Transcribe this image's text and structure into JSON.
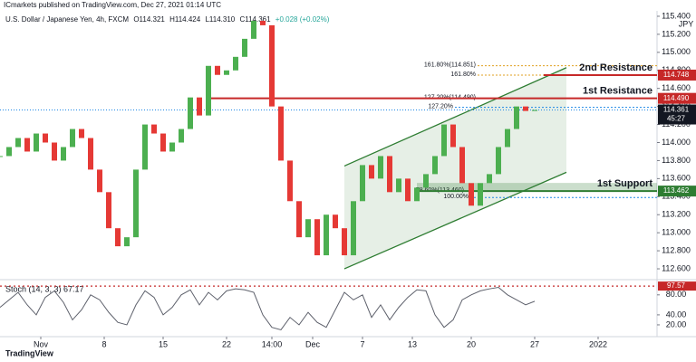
{
  "header": {
    "publisher": "ICmarkets published on TradingView.com, Dec 27, 2021 01:14 UTC",
    "title": "U.S. Dollar / Japanese Yen, 4h, FXCM",
    "ohlc": [
      "O114.321",
      "H114.424",
      "L114.310",
      "C114.361",
      "+0.028 (+0.02%)"
    ],
    "currency": "JPY"
  },
  "footer": {
    "logo": "TradingView"
  },
  "chart_data": {
    "type": "candlestick",
    "x": [
      0,
      2,
      4,
      6,
      8,
      10,
      12,
      14,
      16,
      18,
      20,
      22,
      24,
      26,
      28,
      30,
      32,
      34,
      36,
      38,
      40,
      42,
      44,
      46,
      48,
      50,
      52,
      54,
      56,
      58,
      60,
      62,
      64,
      66,
      68,
      70,
      72,
      74,
      76,
      78,
      80,
      82,
      84,
      86,
      88,
      90,
      92,
      94,
      96,
      98,
      100,
      102,
      104,
      106,
      108,
      110,
      112,
      114,
      116,
      118
    ],
    "values": [
      113.85,
      113.95,
      114.05,
      113.9,
      114.1,
      114.0,
      113.8,
      113.95,
      114.15,
      114.05,
      113.7,
      113.45,
      113.05,
      112.85,
      112.95,
      113.7,
      114.2,
      114.1,
      113.9,
      114.0,
      114.15,
      114.5,
      114.3,
      114.85,
      114.75,
      114.8,
      114.95,
      115.15,
      115.35,
      115.3,
      114.4,
      113.8,
      113.35,
      112.95,
      113.15,
      112.75,
      113.2,
      113.05,
      112.75,
      113.35,
      113.75,
      113.6,
      113.85,
      113.45,
      113.6,
      113.35,
      113.5,
      113.65,
      113.85,
      114.2,
      113.95,
      113.55,
      113.3,
      113.55,
      113.65,
      113.95,
      114.15,
      114.4,
      114.35,
      114.361
    ],
    "up_color": "#4caf50",
    "down_color": "#e53935",
    "xlim": [
      0,
      145
    ],
    "ylim": [
      112.5,
      115.5
    ],
    "xticks": [
      {
        "value": 9,
        "label": "Nov"
      },
      {
        "value": 23,
        "label": "8"
      },
      {
        "value": 36,
        "label": "15"
      },
      {
        "value": 50,
        "label": "22"
      },
      {
        "value": 60,
        "label": "14:00"
      },
      {
        "value": 69,
        "label": "Dec"
      },
      {
        "value": 80,
        "label": "7"
      },
      {
        "value": 91,
        "label": "13"
      },
      {
        "value": 104,
        "label": "20"
      },
      {
        "value": 118,
        "label": "27"
      },
      {
        "value": 132,
        "label": "2022"
      }
    ],
    "yticks": [
      {
        "value": 115.4,
        "label": "115.400"
      },
      {
        "value": 115.2,
        "label": "115.200"
      },
      {
        "value": 115.0,
        "label": "115.000"
      },
      {
        "value": 114.8,
        "label": "114.800"
      },
      {
        "value": 114.6,
        "label": "114.600"
      },
      {
        "value": 114.4,
        "label": "114.400"
      },
      {
        "value": 114.2,
        "label": "114.200"
      },
      {
        "value": 114.0,
        "label": "114.000"
      },
      {
        "value": 113.8,
        "label": "113.800"
      },
      {
        "value": 113.6,
        "label": "113.600"
      },
      {
        "value": 113.4,
        "label": "113.400"
      },
      {
        "value": 113.2,
        "label": "113.200"
      },
      {
        "value": 113.0,
        "label": "113.000"
      },
      {
        "value": 112.8,
        "label": "112.800"
      },
      {
        "value": 112.6,
        "label": "112.600"
      }
    ],
    "last_price": {
      "value": 114.361,
      "label": "114.361",
      "countdown": "45:27",
      "color": "#1e88e5"
    },
    "levels": [
      {
        "name": "2nd Resistance",
        "value": 114.748,
        "label": "114.748",
        "start": 120,
        "color": "#c62828"
      },
      {
        "name": "1st Resistance",
        "value": 114.49,
        "label": "114.490",
        "start": 46,
        "color": "#c62828"
      },
      {
        "name": "1st Support",
        "value": 113.462,
        "label": "113.462",
        "start": 92,
        "color": "#2e7d32"
      }
    ],
    "fibs": [
      {
        "label": "161.80%(114.851)",
        "value": 114.851,
        "color": "#e0a020"
      },
      {
        "label": "161.80%",
        "value": 114.748,
        "color": "#e0a020"
      },
      {
        "label": "127.20%(114.490)",
        "value": 114.49,
        "color": "#1e88e5"
      },
      {
        "label": "127.20%",
        "value": 114.39,
        "color": "#1e88e5"
      },
      {
        "label": "78.60%(113.460)",
        "value": 113.46,
        "color": "#1e88e5"
      },
      {
        "label": "100.00%",
        "value": 113.39,
        "color": "#1e88e5"
      }
    ],
    "channel": {
      "start": 76,
      "end": 125,
      "lower": [
        112.6,
        113.67
      ],
      "upper": [
        113.74,
        114.83
      ],
      "color": "#2e7d32"
    },
    "stoch": {
      "label": "Stoch (14, 3, 3)",
      "current": 67.17,
      "color": "#5d606b",
      "values": [
        55,
        70,
        85,
        60,
        40,
        75,
        88,
        65,
        30,
        50,
        80,
        70,
        45,
        25,
        20,
        60,
        88,
        75,
        40,
        55,
        80,
        90,
        60,
        85,
        70,
        88,
        92,
        90,
        85,
        40,
        15,
        10,
        35,
        20,
        45,
        25,
        15,
        50,
        85,
        70,
        80,
        35,
        60,
        30,
        55,
        75,
        90,
        88,
        40,
        15,
        30,
        70,
        80,
        88,
        92,
        95,
        80,
        70,
        60,
        67.17
      ],
      "ylim": [
        0,
        105
      ],
      "yticks": [
        {
          "value": 80,
          "label": "80.00"
        },
        {
          "value": 40,
          "label": "40.00"
        },
        {
          "value": 20,
          "label": "20.00"
        }
      ],
      "marker": {
        "value": 97.57,
        "label": "97.57",
        "color": "#c62828"
      }
    }
  }
}
